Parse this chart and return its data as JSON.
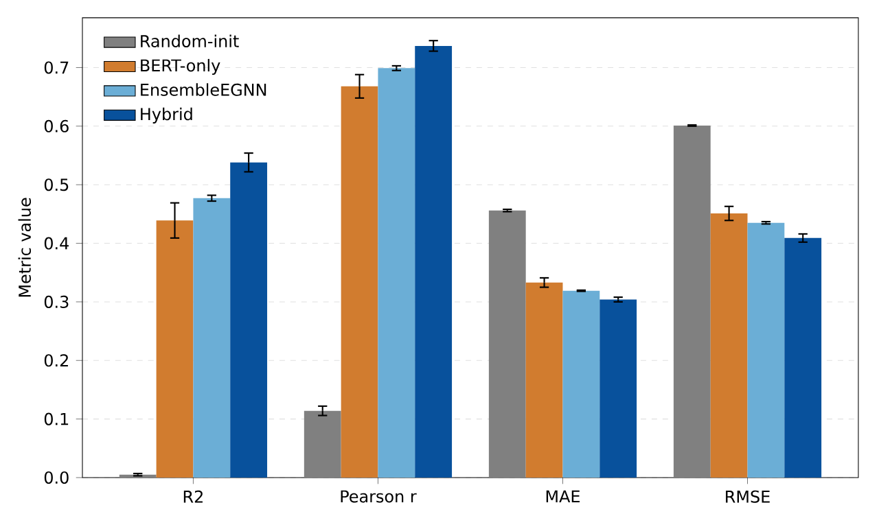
{
  "chart_data": {
    "type": "bar",
    "ylabel": "Metric value",
    "categories": [
      "R2",
      "Pearson r",
      "MAE",
      "RMSE"
    ],
    "series": [
      {
        "name": "Random-init",
        "color": "#808080",
        "values": [
          0.005,
          0.114,
          0.456,
          0.601
        ],
        "errors": [
          0.002,
          0.008,
          0.002,
          0.001
        ]
      },
      {
        "name": "BERT-only",
        "color": "#d17c2f",
        "values": [
          0.439,
          0.668,
          0.333,
          0.451
        ],
        "errors": [
          0.03,
          0.02,
          0.008,
          0.012
        ]
      },
      {
        "name": "EnsembleEGNN",
        "color": "#6baed6",
        "values": [
          0.477,
          0.699,
          0.319,
          0.435
        ],
        "errors": [
          0.005,
          0.004,
          0.001,
          0.002
        ]
      },
      {
        "name": "Hybrid",
        "color": "#08519c",
        "values": [
          0.538,
          0.737,
          0.304,
          0.409
        ],
        "errors": [
          0.016,
          0.009,
          0.004,
          0.007
        ]
      }
    ],
    "ylim": [
      0,
      0.785
    ],
    "yticks": [
      {
        "value": 0,
        "label": "0.0"
      },
      0.1,
      0.2,
      0.3,
      0.4,
      0.5,
      0.6,
      0.7
    ],
    "grid": "y",
    "legend": "top left"
  }
}
